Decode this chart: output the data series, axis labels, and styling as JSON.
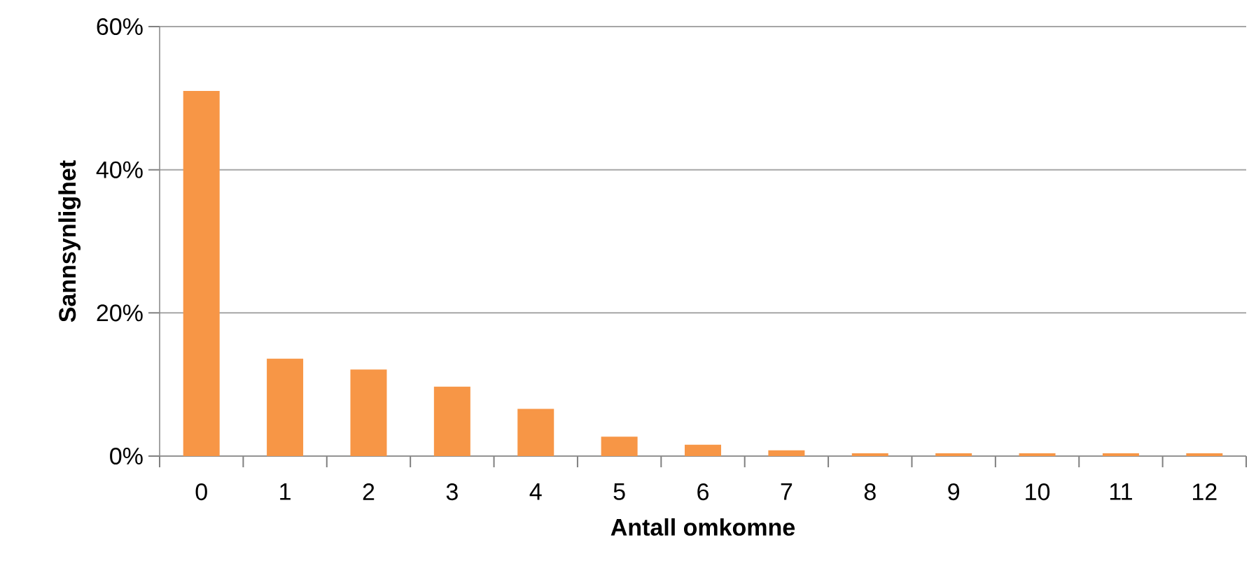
{
  "chart_data": {
    "type": "bar",
    "xlabel": "Antall omkomne",
    "ylabel": "Sannsynlighet",
    "categories": [
      "0",
      "1",
      "2",
      "3",
      "4",
      "5",
      "6",
      "7",
      "8",
      "9",
      "10",
      "11",
      "12"
    ],
    "values": [
      51,
      13.6,
      12.1,
      9.7,
      6.6,
      2.7,
      1.6,
      0.8,
      0.4,
      0.4,
      0.4,
      0.4,
      0.4
    ],
    "color": "#f79646",
    "ylim": [
      0,
      60
    ],
    "yticks": [
      {
        "value": 0,
        "label": "0%"
      },
      {
        "value": 20,
        "label": "20%"
      },
      {
        "value": 40,
        "label": "40%"
      },
      {
        "value": 60,
        "label": "60%"
      }
    ],
    "grid": "y"
  }
}
